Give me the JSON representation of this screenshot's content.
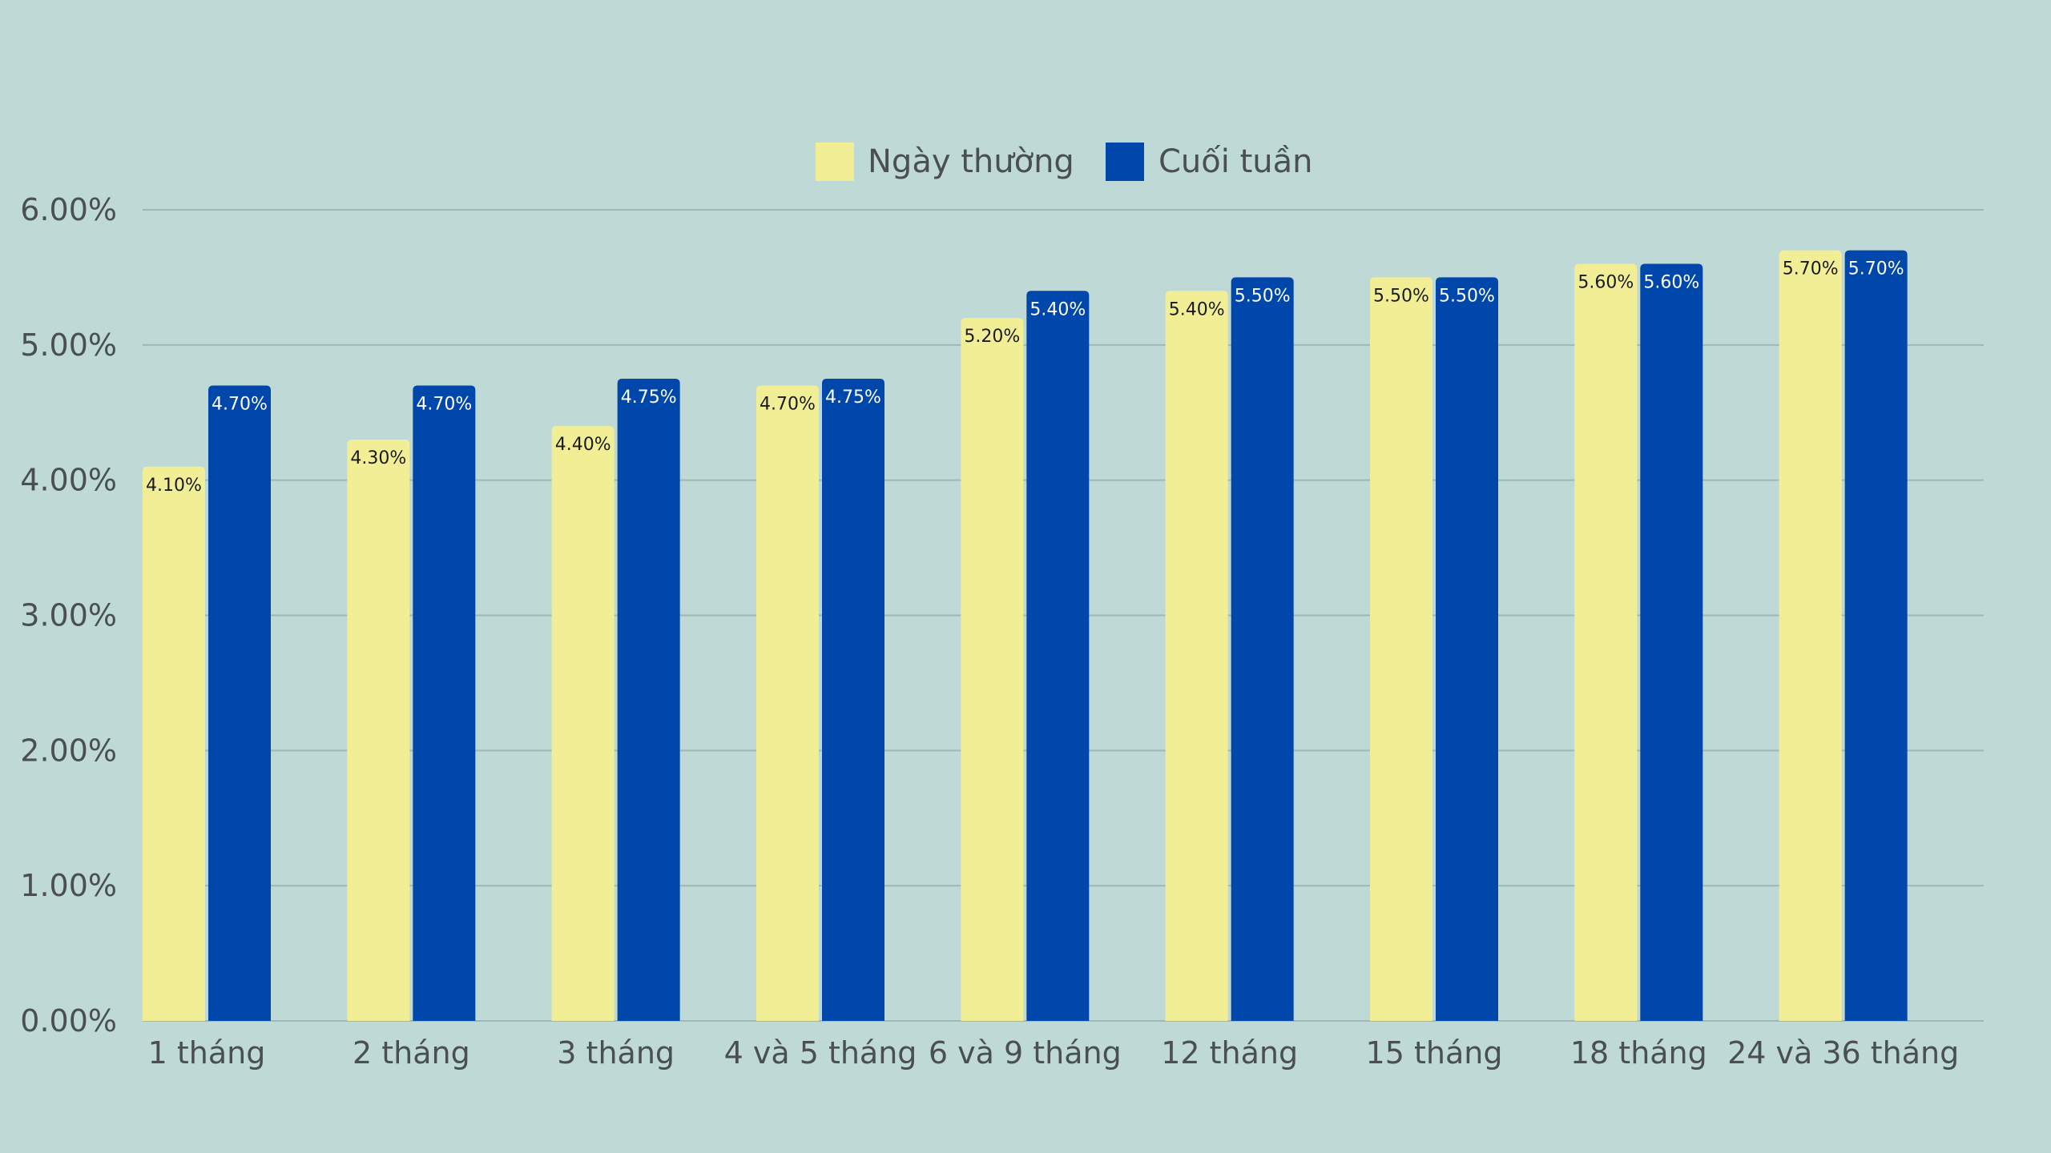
{
  "chart_data": {
    "type": "bar",
    "title": "",
    "xlabel": "",
    "ylabel": "",
    "categories": [
      "1 tháng",
      "2 tháng",
      "3 tháng",
      "4 và 5 tháng",
      "6 và 9 tháng",
      "12 tháng",
      "15 tháng",
      "18 tháng",
      "24 và 36 tháng"
    ],
    "series": [
      {
        "name": "Ngày thường",
        "color": "#f2ee96",
        "label_color": "#1a1a1a",
        "values": [
          4.1,
          4.3,
          4.4,
          4.7,
          5.2,
          5.4,
          5.5,
          5.6,
          5.7
        ],
        "labels": [
          "4.10%",
          "4.30%",
          "4.40%",
          "4.70%",
          "5.20%",
          "5.40%",
          "5.50%",
          "5.60%",
          "5.70%"
        ]
      },
      {
        "name": "Cuối tuần",
        "color": "#0047ab",
        "label_color": "#ffffff",
        "values": [
          4.7,
          4.7,
          4.75,
          4.75,
          5.4,
          5.5,
          5.5,
          5.6,
          5.7
        ],
        "labels": [
          "4.70%",
          "4.70%",
          "4.75%",
          "4.75%",
          "5.40%",
          "5.50%",
          "5.50%",
          "5.60%",
          "5.70%"
        ]
      }
    ],
    "ylim": [
      0,
      6
    ],
    "yticks": [
      0,
      1,
      2,
      3,
      4,
      5,
      6
    ],
    "ytick_labels": [
      "0.00%",
      "1.00%",
      "2.00%",
      "3.00%",
      "4.00%",
      "5.00%",
      "6.00%"
    ],
    "grid": true,
    "legend_position": "top-center",
    "gridline_color": "#9fb8b6",
    "background": "#bfd9d6"
  }
}
